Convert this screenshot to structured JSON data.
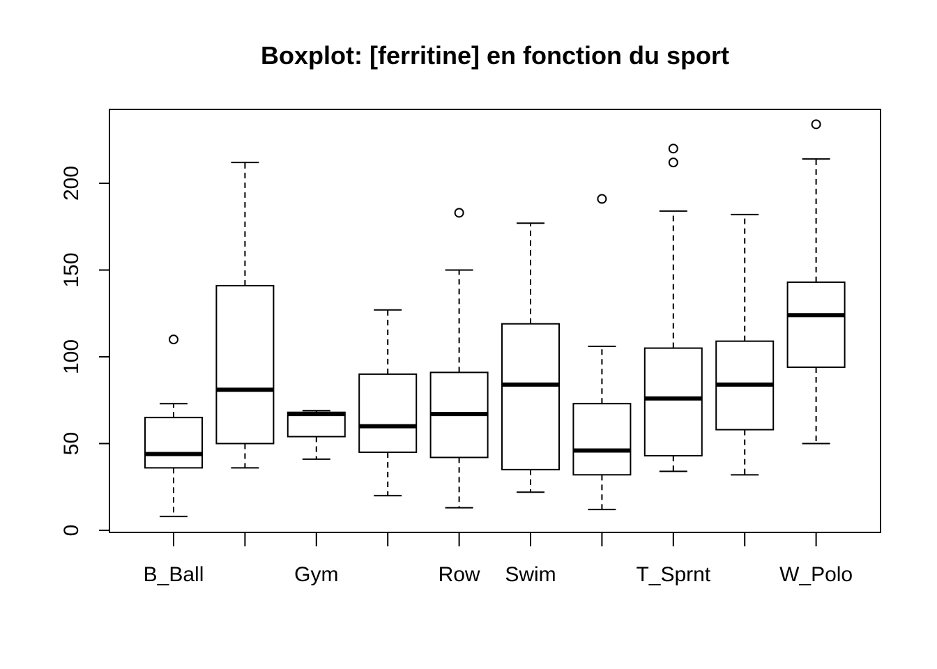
{
  "chart_data": {
    "type": "boxplot",
    "title": "Boxplot: [ferritine] en fonction du sport",
    "xlabel": "",
    "ylabel": "",
    "ylim": [
      0,
      240
    ],
    "y_ticks": [
      0,
      50,
      100,
      150,
      200
    ],
    "grid": false,
    "legend": "none",
    "categories": [
      "B_Ball",
      "",
      "Gym",
      "",
      "Row",
      "Swim",
      "",
      "T_Sprnt",
      "",
      "W_Polo"
    ],
    "boxes": [
      {
        "label": "B_Ball",
        "min": 8,
        "q1": 36,
        "median": 44,
        "q3": 65,
        "max": 73,
        "outliers": [
          110
        ]
      },
      {
        "label": "",
        "min": 36,
        "q1": 50,
        "median": 81,
        "q3": 141,
        "max": 212,
        "outliers": []
      },
      {
        "label": "Gym",
        "min": 41,
        "q1": 54,
        "median": 67,
        "q3": 68,
        "max": 69,
        "outliers": []
      },
      {
        "label": "",
        "min": 20,
        "q1": 45,
        "median": 60,
        "q3": 90,
        "max": 127,
        "outliers": []
      },
      {
        "label": "Row",
        "min": 13,
        "q1": 42,
        "median": 67,
        "q3": 91,
        "max": 150,
        "outliers": [
          183
        ]
      },
      {
        "label": "Swim",
        "min": 22,
        "q1": 35,
        "median": 84,
        "q3": 119,
        "max": 177,
        "outliers": []
      },
      {
        "label": "",
        "min": 12,
        "q1": 32,
        "median": 46,
        "q3": 73,
        "max": 106,
        "outliers": [
          191
        ]
      },
      {
        "label": "T_Sprnt",
        "min": 34,
        "q1": 43,
        "median": 76,
        "q3": 105,
        "max": 184,
        "outliers": [
          212,
          220
        ]
      },
      {
        "label": "",
        "min": 32,
        "q1": 58,
        "median": 84,
        "q3": 109,
        "max": 182,
        "outliers": []
      },
      {
        "label": "W_Polo",
        "min": 50,
        "q1": 94,
        "median": 124,
        "q3": 143,
        "max": 214,
        "outliers": [
          234
        ]
      }
    ]
  }
}
